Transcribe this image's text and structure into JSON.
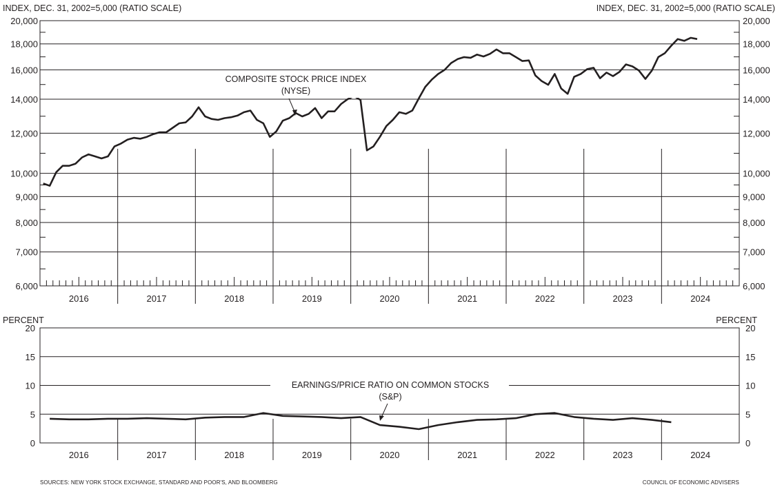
{
  "footer": {
    "sources": "SOURCES: NEW YORK STOCK EXCHANGE, STANDARD AND POOR'S, AND BLOOMBERG",
    "credit": "COUNCIL OF ECONOMIC ADVISERS"
  },
  "chart_data": [
    {
      "type": "line",
      "scale": "log",
      "ylabel_left": "INDEX, DEC. 31, 2002=5,000 (RATIO SCALE)",
      "ylabel_right": "INDEX, DEC. 31, 2002=5,000 (RATIO SCALE)",
      "ylim": [
        6000,
        20000
      ],
      "yticks": [
        6000,
        7000,
        8000,
        9000,
        10000,
        12000,
        14000,
        16000,
        18000,
        20000
      ],
      "ytick_labels": [
        "6,000",
        "7,000",
        "8,000",
        "9,000",
        "10,000",
        "12,000",
        "14,000",
        "16,000",
        "18,000",
        "20,000"
      ],
      "years": [
        "2016",
        "2017",
        "2018",
        "2019",
        "2020",
        "2021",
        "2022",
        "2023",
        "2024"
      ],
      "annotation": {
        "line1": "COMPOSITE STOCK PRICE INDEX",
        "line2": "(NYSE)"
      },
      "series": [
        {
          "x": [
            "2016-01",
            "2016-02",
            "2016-03",
            "2016-04",
            "2016-05",
            "2016-06",
            "2016-07",
            "2016-08",
            "2016-09",
            "2016-10",
            "2016-11",
            "2016-12",
            "2017-01",
            "2017-02",
            "2017-03",
            "2017-04",
            "2017-05",
            "2017-06",
            "2017-07",
            "2017-08",
            "2017-09",
            "2017-10",
            "2017-11",
            "2017-12",
            "2018-01",
            "2018-02",
            "2018-03",
            "2018-04",
            "2018-05",
            "2018-06",
            "2018-07",
            "2018-08",
            "2018-09",
            "2018-10",
            "2018-11",
            "2018-12",
            "2019-01",
            "2019-02",
            "2019-03",
            "2019-04",
            "2019-05",
            "2019-06",
            "2019-07",
            "2019-08",
            "2019-09",
            "2019-10",
            "2019-11",
            "2019-12",
            "2020-01",
            "2020-02",
            "2020-03",
            "2020-04",
            "2020-05",
            "2020-06",
            "2020-07",
            "2020-08",
            "2020-09",
            "2020-10",
            "2020-11",
            "2020-12",
            "2021-01",
            "2021-02",
            "2021-03",
            "2021-04",
            "2021-05",
            "2021-06",
            "2021-07",
            "2021-08",
            "2021-09",
            "2021-10",
            "2021-11",
            "2021-12",
            "2022-01",
            "2022-02",
            "2022-03",
            "2022-04",
            "2022-05",
            "2022-06",
            "2022-07",
            "2022-08",
            "2022-09",
            "2022-10",
            "2022-11",
            "2022-12",
            "2023-01",
            "2023-02",
            "2023-03",
            "2023-04",
            "2023-05",
            "2023-06",
            "2023-07",
            "2023-08",
            "2023-09",
            "2023-10",
            "2023-11",
            "2023-12",
            "2024-01",
            "2024-02",
            "2024-03",
            "2024-04",
            "2024-05",
            "2024-06"
          ],
          "values": [
            9550,
            9450,
            10050,
            10350,
            10350,
            10450,
            10750,
            10900,
            10800,
            10700,
            10800,
            11300,
            11450,
            11650,
            11750,
            11700,
            11800,
            11950,
            12050,
            12050,
            12300,
            12550,
            12600,
            12950,
            13500,
            12950,
            12800,
            12750,
            12850,
            12900,
            13000,
            13200,
            13300,
            12750,
            12550,
            11800,
            12100,
            12700,
            12850,
            13150,
            12950,
            13100,
            13450,
            12850,
            13250,
            13250,
            13700,
            14000,
            14200,
            13950,
            11100,
            11300,
            11800,
            12400,
            12750,
            13200,
            13100,
            13300,
            14050,
            14800,
            15300,
            15700,
            16000,
            16500,
            16800,
            16950,
            16900,
            17150,
            17000,
            17200,
            17550,
            17250,
            17250,
            16950,
            16650,
            16700,
            15600,
            15200,
            14950,
            15700,
            14700,
            14350,
            15500,
            15700,
            16050,
            16150,
            15400,
            15800,
            15550,
            15850,
            16400,
            16250,
            15950,
            15350,
            15950,
            16950,
            17250,
            17850,
            18400,
            18250,
            18500,
            18400
          ]
        }
      ]
    },
    {
      "type": "line",
      "ylabel_left": "PERCENT",
      "ylabel_right": "PERCENT",
      "ylim": [
        0,
        20
      ],
      "yticks": [
        0,
        5,
        10,
        15,
        20
      ],
      "ytick_labels": [
        "0",
        "5",
        "10",
        "15",
        "20"
      ],
      "years": [
        "2016",
        "2017",
        "2018",
        "2019",
        "2020",
        "2021",
        "2022",
        "2023",
        "2024"
      ],
      "annotation": {
        "line1": "EARNINGS/PRICE RATIO ON COMMON STOCKS",
        "line2": "(S&P)"
      },
      "series": [
        {
          "x": [
            "2016-Q1",
            "2016-Q2",
            "2016-Q3",
            "2016-Q4",
            "2017-Q1",
            "2017-Q2",
            "2017-Q3",
            "2017-Q4",
            "2018-Q1",
            "2018-Q2",
            "2018-Q3",
            "2018-Q4",
            "2019-Q1",
            "2019-Q2",
            "2019-Q3",
            "2019-Q4",
            "2020-Q1",
            "2020-Q2",
            "2020-Q3",
            "2020-Q4",
            "2021-Q1",
            "2021-Q2",
            "2021-Q3",
            "2021-Q4",
            "2022-Q1",
            "2022-Q2",
            "2022-Q3",
            "2022-Q4",
            "2023-Q1",
            "2023-Q2",
            "2023-Q3",
            "2023-Q4",
            "2024-Q1"
          ],
          "values": [
            4.2,
            4.1,
            4.1,
            4.2,
            4.2,
            4.3,
            4.2,
            4.1,
            4.4,
            4.5,
            4.5,
            5.2,
            4.7,
            4.6,
            4.5,
            4.3,
            4.5,
            3.1,
            2.8,
            2.4,
            3.1,
            3.6,
            4.0,
            4.1,
            4.3,
            5.0,
            5.2,
            4.5,
            4.2,
            4.0,
            4.3,
            4.0,
            3.6
          ]
        }
      ]
    }
  ]
}
